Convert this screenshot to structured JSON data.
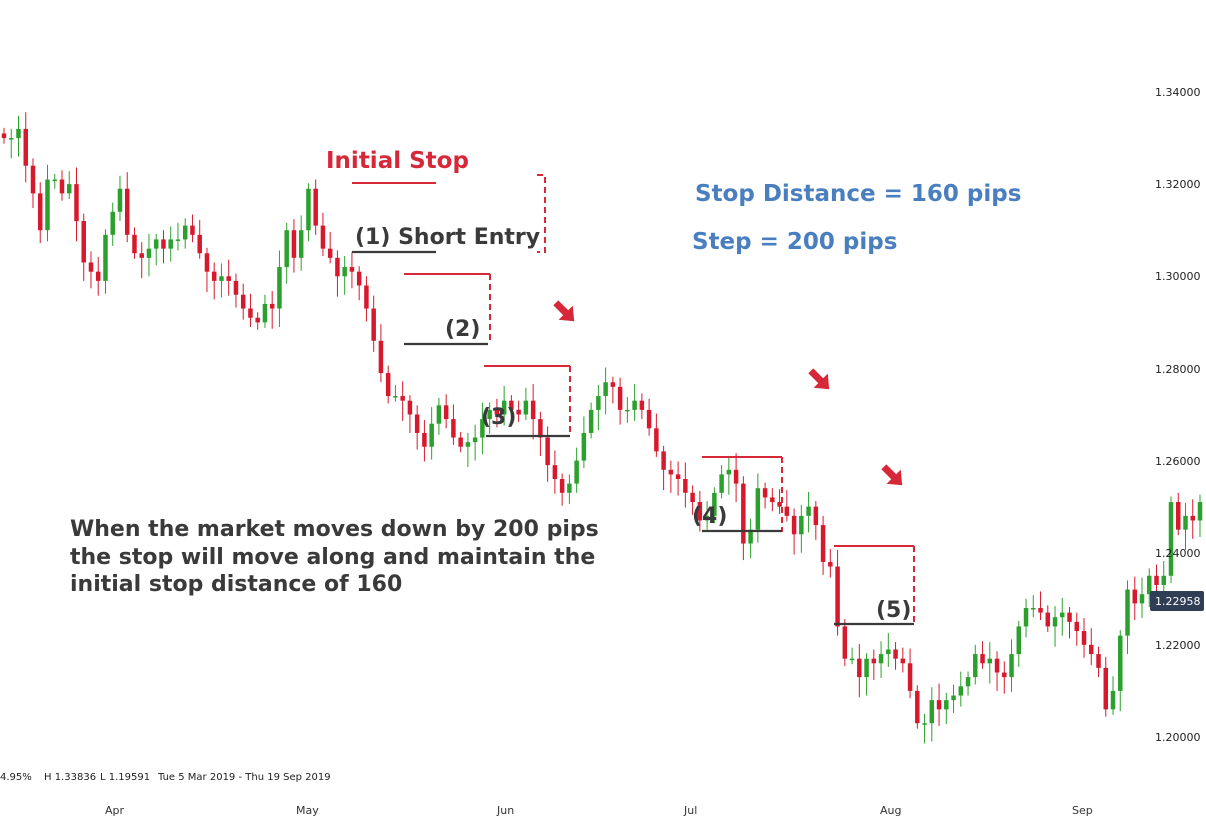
{
  "chart_data": {
    "type": "candlestick",
    "y_range": [
      1.19,
      1.345
    ],
    "y_ticks": [
      "1.34000",
      "1.32000",
      "1.30000",
      "1.28000",
      "1.26000",
      "1.24000",
      "1.22000",
      "1.20000"
    ],
    "x_ticks": [
      "Apr",
      "May",
      "Jun",
      "Jul",
      "Aug",
      "Sep"
    ],
    "last_price": "1.22958",
    "info_bar": {
      "change": "4.95%",
      "high": "H 1.33836",
      "low": "L 1.19591",
      "range": "Tue 5 Mar 2019 - Thu 19 Sep 2019"
    },
    "annotations": {
      "initial_stop": "Initial Stop",
      "short_entry": "(1) Short Entry",
      "stop_distance": "Stop Distance = 160 pips",
      "step": "Step = 200 pips",
      "label_2": "(2)",
      "label_3": "(3)",
      "label_4": "(4)",
      "label_5": "(5)",
      "body_text_1": "When the market moves down by 200 pips",
      "body_text_2": "the stop will move along and maintain the",
      "body_text_3": "initial stop distance of 160"
    },
    "colors": {
      "up": "#2ca02c",
      "down": "#d7192d",
      "annotation_red": "#d7283a",
      "annotation_blue": "#4a7fbf",
      "annotation_dark": "#3a3a3a",
      "price_tag": "#2f3e55"
    },
    "closes": [
      1.33,
      1.33,
      1.332,
      1.324,
      1.318,
      1.31,
      1.321,
      1.321,
      1.318,
      1.32,
      1.312,
      1.303,
      1.301,
      1.299,
      1.309,
      1.314,
      1.319,
      1.309,
      1.305,
      1.304,
      1.306,
      1.308,
      1.306,
      1.308,
      1.308,
      1.311,
      1.309,
      1.305,
      1.301,
      1.299,
      1.3,
      1.299,
      1.296,
      1.293,
      1.291,
      1.29,
      1.294,
      1.293,
      1.302,
      1.31,
      1.304,
      1.31,
      1.319,
      1.311,
      1.306,
      1.304,
      1.3,
      1.302,
      1.301,
      1.298,
      1.293,
      1.286,
      1.279,
      1.274,
      1.274,
      1.273,
      1.27,
      1.266,
      1.263,
      1.268,
      1.272,
      1.269,
      1.265,
      1.263,
      1.264,
      1.265,
      1.269,
      1.271,
      1.27,
      1.273,
      1.271,
      1.27,
      1.273,
      1.269,
      1.265,
      1.259,
      1.256,
      1.253,
      1.255,
      1.26,
      1.266,
      1.271,
      1.274,
      1.277,
      1.276,
      1.271,
      1.271,
      1.273,
      1.271,
      1.267,
      1.262,
      1.258,
      1.257,
      1.256,
      1.253,
      1.251,
      1.247,
      1.248,
      1.253,
      1.257,
      1.258,
      1.255,
      1.242,
      1.245,
      1.254,
      1.252,
      1.251,
      1.25,
      1.248,
      1.244,
      1.248,
      1.25,
      1.246,
      1.238,
      1.237,
      1.224,
      1.217,
      1.217,
      1.213,
      1.217,
      1.216,
      1.218,
      1.219,
      1.217,
      1.216,
      1.21,
      1.203,
      1.203,
      1.208,
      1.206,
      1.208,
      1.209,
      1.211,
      1.213,
      1.218,
      1.216,
      1.217,
      1.214,
      1.213,
      1.218,
      1.224,
      1.228,
      1.228,
      1.227,
      1.224,
      1.226,
      1.227,
      1.225,
      1.223,
      1.22,
      1.218,
      1.215,
      1.206,
      1.21,
      1.222,
      1.232,
      1.229,
      1.231,
      1.235,
      1.233,
      1.235,
      1.251,
      1.245,
      1.248,
      1.247,
      1.251
    ]
  }
}
